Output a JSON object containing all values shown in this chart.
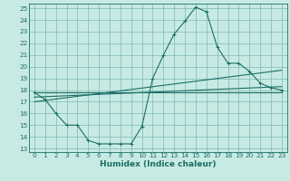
{
  "title": "",
  "xlabel": "Humidex (Indice chaleur)",
  "bg_color": "#c8eae4",
  "grid_color": "#7db8b2",
  "line_color": "#1a6e65",
  "xlim_min": -0.5,
  "xlim_max": 23.5,
  "ylim_min": 12.7,
  "ylim_max": 25.4,
  "xticks": [
    0,
    1,
    2,
    3,
    4,
    5,
    6,
    7,
    8,
    9,
    10,
    11,
    12,
    13,
    14,
    15,
    16,
    17,
    18,
    19,
    20,
    21,
    22,
    23
  ],
  "yticks": [
    13,
    14,
    15,
    16,
    17,
    18,
    19,
    20,
    21,
    22,
    23,
    24,
    25
  ],
  "series1_x": [
    0,
    1,
    2,
    3,
    4,
    5,
    6,
    7,
    8,
    9,
    10,
    11,
    12,
    13,
    14,
    15,
    16,
    17,
    18,
    19,
    20,
    21,
    22,
    23
  ],
  "series1_y": [
    17.8,
    17.2,
    16.0,
    15.0,
    15.0,
    13.7,
    13.4,
    13.4,
    13.4,
    13.4,
    14.9,
    19.0,
    21.0,
    22.8,
    23.9,
    25.1,
    24.7,
    21.7,
    20.3,
    20.3,
    19.6,
    18.6,
    18.2,
    18.0
  ],
  "series2_x": [
    0,
    23
  ],
  "series2_y": [
    17.8,
    17.8
  ],
  "series3_x": [
    0,
    23
  ],
  "series3_y": [
    17.4,
    18.3
  ],
  "series4_x": [
    0,
    23
  ],
  "series4_y": [
    17.0,
    19.7
  ],
  "xlabel_fontsize": 6.5,
  "tick_fontsize": 5.2,
  "linewidth": 0.8,
  "marker_size": 2.5
}
